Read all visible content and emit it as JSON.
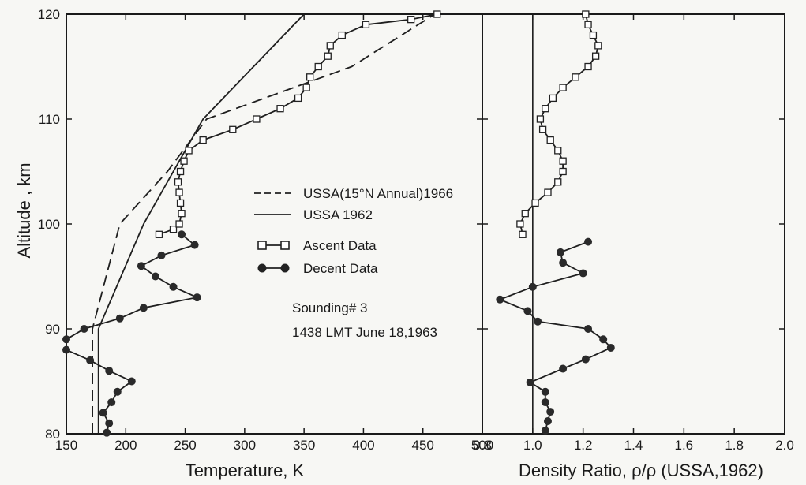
{
  "chart_data": [
    {
      "type": "line",
      "panel": "temperature",
      "xlabel": "Temperature, K",
      "ylabel": "Altitude , km",
      "xlim": [
        150,
        500
      ],
      "ylim": [
        80,
        120
      ],
      "x_ticks": [
        "150",
        "200",
        "250",
        "300",
        "350",
        "400",
        "450",
        "500"
      ],
      "y_ticks": [
        "80",
        "90",
        "100",
        "110",
        "120"
      ],
      "grid": false,
      "legend_position": "center",
      "legend": [
        "USSA(15°N Annual)1966",
        "USSA 1962",
        "Ascent Data",
        "Decent Data"
      ],
      "annotation": [
        "Sounding# 3",
        "1438 LMT June 18,1963"
      ],
      "series": [
        {
          "name": "USSA(15°N Annual)1966",
          "style": "dashed",
          "points": [
            [
              172,
              80
            ],
            [
              172,
              90
            ],
            [
              195,
              100
            ],
            [
              235,
              105
            ],
            [
              268,
              110
            ],
            [
              390,
              115
            ],
            [
              460,
              120
            ]
          ]
        },
        {
          "name": "USSA 1962",
          "style": "solid",
          "points": [
            [
              177,
              80
            ],
            [
              177,
              90
            ],
            [
              215,
              100
            ],
            [
              265,
              110
            ],
            [
              350,
              120
            ]
          ]
        },
        {
          "name": "Ascent Data",
          "style": "line-open-square",
          "points": [
            [
              228,
              99
            ],
            [
              240,
              99.5
            ],
            [
              245,
              100
            ],
            [
              247,
              101
            ],
            [
              246,
              102
            ],
            [
              245,
              103
            ],
            [
              244,
              104
            ],
            [
              246,
              105
            ],
            [
              249,
              106
            ],
            [
              253,
              107
            ],
            [
              265,
              108
            ],
            [
              290,
              109
            ],
            [
              310,
              110
            ],
            [
              330,
              111
            ],
            [
              345,
              112
            ],
            [
              352,
              113
            ],
            [
              355,
              114
            ],
            [
              362,
              115
            ],
            [
              370,
              116
            ],
            [
              372,
              117
            ],
            [
              382,
              118
            ],
            [
              402,
              119
            ],
            [
              440,
              119.5
            ],
            [
              462,
              120
            ]
          ]
        },
        {
          "name": "Decent Data",
          "style": "line-filled-circle",
          "points": [
            [
              184,
              80.1
            ],
            [
              186,
              81
            ],
            [
              181,
              82
            ],
            [
              188,
              83
            ],
            [
              193,
              84
            ],
            [
              205,
              85
            ],
            [
              186,
              86
            ],
            [
              170,
              87
            ],
            [
              150,
              88
            ],
            [
              150,
              89
            ],
            [
              165,
              90
            ],
            [
              195,
              91
            ],
            [
              215,
              92
            ],
            [
              260,
              93
            ],
            [
              240,
              94
            ],
            [
              225,
              95
            ],
            [
              213,
              96
            ],
            [
              230,
              97
            ],
            [
              258,
              98
            ],
            [
              247,
              99
            ]
          ]
        }
      ]
    },
    {
      "type": "line",
      "panel": "density_ratio",
      "xlabel": "Density Ratio, ρ/ρ (USSA,1962)",
      "ylabel": "",
      "xlim": [
        0.8,
        2.0
      ],
      "ylim": [
        80,
        120
      ],
      "x_ticks": [
        "0.8",
        "1.0",
        "1.2",
        "1.4",
        "1.6",
        "1.8",
        "2.0"
      ],
      "grid": false,
      "reference_line_x": 1.0,
      "series": [
        {
          "name": "Ascent Data",
          "style": "line-open-square",
          "points": [
            [
              0.96,
              99
            ],
            [
              0.95,
              100
            ],
            [
              0.97,
              101
            ],
            [
              1.01,
              102
            ],
            [
              1.06,
              103
            ],
            [
              1.1,
              104
            ],
            [
              1.12,
              105
            ],
            [
              1.12,
              106
            ],
            [
              1.1,
              107
            ],
            [
              1.07,
              108
            ],
            [
              1.04,
              109
            ],
            [
              1.03,
              110
            ],
            [
              1.05,
              111
            ],
            [
              1.08,
              112
            ],
            [
              1.12,
              113
            ],
            [
              1.17,
              114
            ],
            [
              1.22,
              115
            ],
            [
              1.25,
              116
            ],
            [
              1.26,
              117
            ],
            [
              1.24,
              118
            ],
            [
              1.22,
              119
            ],
            [
              1.21,
              120
            ]
          ]
        },
        {
          "name": "Decent Data",
          "style": "line-filled-circle",
          "points": [
            [
              1.05,
              80.3
            ],
            [
              1.06,
              81.2
            ],
            [
              1.07,
              82.1
            ],
            [
              1.05,
              83
            ],
            [
              1.05,
              84
            ],
            [
              0.99,
              84.9
            ],
            [
              1.12,
              86.2
            ],
            [
              1.21,
              87.1
            ],
            [
              1.31,
              88.2
            ],
            [
              1.28,
              89
            ],
            [
              1.22,
              90
            ],
            [
              1.02,
              90.7
            ],
            [
              0.98,
              91.7
            ],
            [
              0.87,
              92.8
            ],
            [
              1.0,
              94
            ],
            [
              1.2,
              95.3
            ],
            [
              1.12,
              96.3
            ],
            [
              1.11,
              97.3
            ],
            [
              1.22,
              98.3
            ]
          ]
        }
      ]
    }
  ]
}
